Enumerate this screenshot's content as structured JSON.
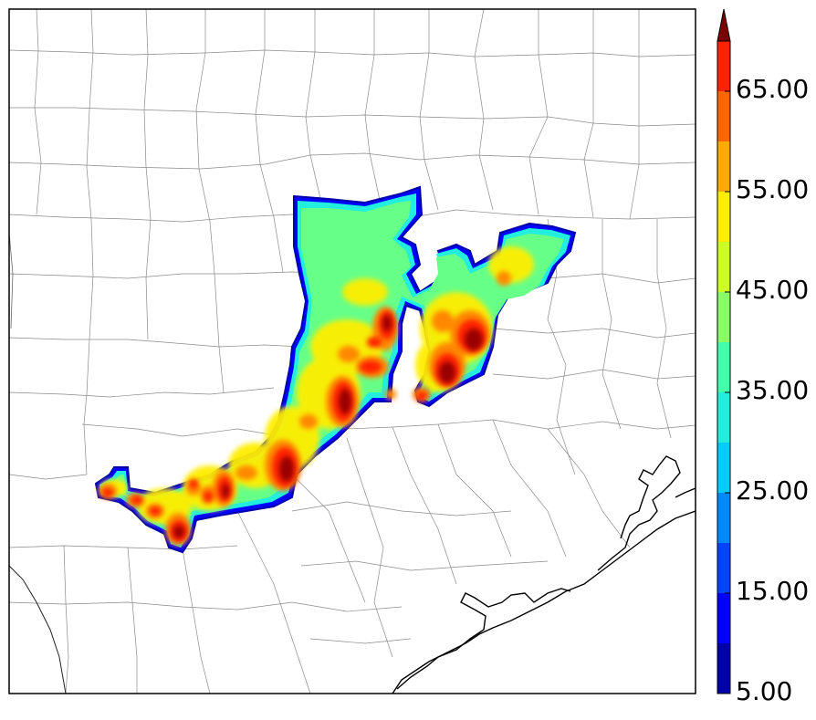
{
  "colorbar": {
    "tick_labels": [
      "5.00",
      "15.00",
      "25.00",
      "35.00",
      "45.00",
      "55.00",
      "65.00"
    ],
    "tick_values": [
      5,
      15,
      25,
      35,
      45,
      55,
      65
    ],
    "levels": [
      5,
      10,
      15,
      20,
      25,
      30,
      35,
      40,
      45,
      50,
      55,
      60,
      65,
      70
    ],
    "colors": [
      "#0000aa",
      "#0000ff",
      "#0044ff",
      "#0088ff",
      "#00ccff",
      "#22eedd",
      "#44ffaa",
      "#88ff66",
      "#ccff22",
      "#ffee00",
      "#ffaa00",
      "#ff6600",
      "#ff2200",
      "#aa0000"
    ],
    "extend": "max",
    "over_color": "#7a0000"
  },
  "map": {
    "coastline_color": "#000000",
    "county_line_color": "#888888",
    "frame_color": "#000000"
  }
}
